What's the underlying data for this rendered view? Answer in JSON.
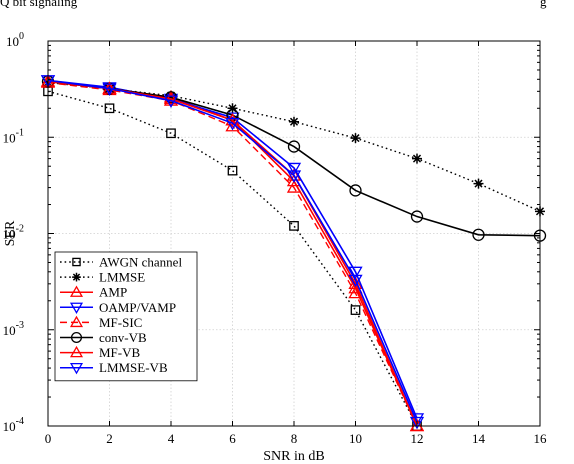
{
  "page_fragment": {
    "left": "Q bit signaling",
    "right": "g"
  },
  "chart_data": {
    "type": "line",
    "title": "",
    "xlabel": "SNR in dB",
    "ylabel": "SER",
    "xlim": [
      0,
      16
    ],
    "ylim": [
      0.0001,
      1
    ],
    "yscale": "log",
    "grid": true,
    "x_ticks": [
      0,
      2,
      4,
      6,
      8,
      10,
      12,
      14,
      16
    ],
    "y_ticks": [
      {
        "value": 1,
        "base": "10",
        "exp": "0"
      },
      {
        "value": 0.1,
        "base": "10",
        "exp": "-1"
      },
      {
        "value": 0.01,
        "base": "10",
        "exp": "-2"
      },
      {
        "value": 0.001,
        "base": "10",
        "exp": "-3"
      },
      {
        "value": 0.0001,
        "base": "10",
        "exp": "-4"
      }
    ],
    "legend_position": "bottom-left",
    "series": [
      {
        "name": "AWGN channel",
        "color": "#000000",
        "dash": "dotted",
        "marker": "square",
        "x": [
          0,
          2,
          4,
          6,
          8,
          10,
          12
        ],
        "y": [
          0.3,
          0.2,
          0.11,
          0.045,
          0.012,
          0.0016,
          0.0001
        ]
      },
      {
        "name": "LMMSE",
        "color": "#000000",
        "dash": "dotted",
        "marker": "star",
        "x": [
          0,
          2,
          4,
          6,
          8,
          10,
          12,
          14,
          16
        ],
        "y": [
          0.37,
          0.32,
          0.27,
          0.2,
          0.145,
          0.098,
          0.06,
          0.033,
          0.017
        ]
      },
      {
        "name": "AMP",
        "color": "#ff0000",
        "dash": "solid",
        "marker": "triangle-up",
        "x": [
          0,
          2,
          4,
          6,
          8,
          10,
          12
        ],
        "y": [
          0.38,
          0.32,
          0.26,
          0.15,
          0.04,
          0.003,
          0.0001
        ]
      },
      {
        "name": "OAMP/VAMP",
        "color": "#0000ff",
        "dash": "solid",
        "marker": "triangle-down",
        "x": [
          0,
          2,
          4,
          6,
          8,
          10,
          12
        ],
        "y": [
          0.39,
          0.33,
          0.25,
          0.16,
          0.048,
          0.004,
          0.00012
        ]
      },
      {
        "name": "MF-SIC",
        "color": "#ff0000",
        "dash": "dashed",
        "marker": "triangle-up",
        "x": [
          0,
          2,
          4,
          6,
          8,
          10,
          12
        ],
        "y": [
          0.37,
          0.31,
          0.24,
          0.13,
          0.03,
          0.0024,
          0.0001
        ]
      },
      {
        "name": "conv-VB",
        "color": "#000000",
        "dash": "solid",
        "marker": "circle",
        "x": [
          0,
          2,
          4,
          6,
          8,
          10,
          12,
          14,
          16
        ],
        "y": [
          0.38,
          0.32,
          0.26,
          0.17,
          0.08,
          0.028,
          0.015,
          0.0097,
          0.0095
        ]
      },
      {
        "name": "MF-VB",
        "color": "#ff0000",
        "dash": "solid",
        "marker": "triangle-up",
        "x": [
          0,
          2,
          4,
          6,
          8,
          10,
          12
        ],
        "y": [
          0.38,
          0.32,
          0.25,
          0.15,
          0.035,
          0.0027,
          0.0001
        ]
      },
      {
        "name": "LMMSE-VB",
        "color": "#0000ff",
        "dash": "solid",
        "marker": "triangle-down",
        "x": [
          0,
          2,
          4,
          6,
          8,
          10,
          12
        ],
        "y": [
          0.39,
          0.32,
          0.24,
          0.14,
          0.04,
          0.0033,
          0.00011
        ]
      }
    ]
  }
}
